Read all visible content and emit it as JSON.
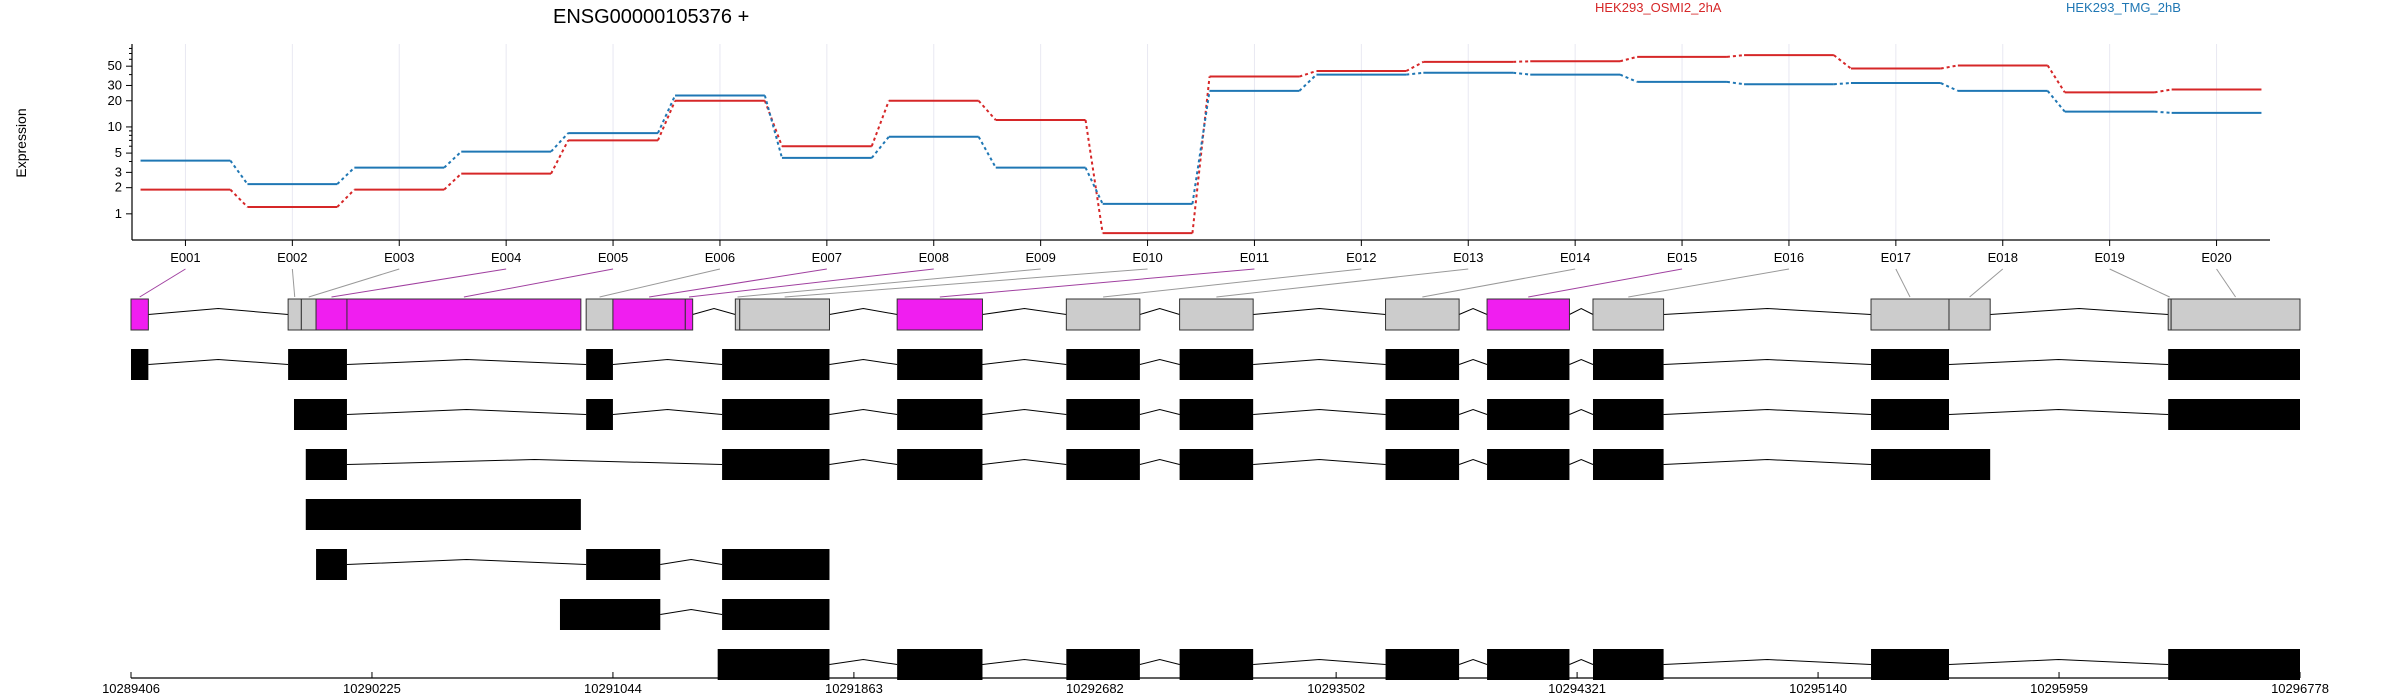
{
  "title": "ENSG00000105376 +",
  "legend": [
    {
      "name": "HEK293_OSMI2_2hA",
      "color": "#d62728"
    },
    {
      "name": "HEK293_TMG_2hB",
      "color": "#1f77b4"
    }
  ],
  "colors": {
    "highlight": "#f01ef0",
    "neutral": "#cccccc",
    "transcript": "#000000",
    "grid": "#e8e8f2"
  },
  "chart_data": {
    "type": "line",
    "ylabel": "Expression",
    "yscale": "log",
    "ylim": [
      0.5,
      90
    ],
    "yticks": [
      "1",
      "2",
      "3",
      "5",
      "10",
      "20",
      "30",
      "50"
    ],
    "categories": [
      "E001",
      "E002",
      "E003",
      "E004",
      "E005",
      "E006",
      "E007",
      "E008",
      "E009",
      "E010",
      "E011",
      "E012",
      "E013",
      "E014",
      "E015",
      "E016",
      "E017",
      "E018",
      "E019",
      "E020"
    ],
    "series": [
      {
        "name": "HEK293_OSMI2_2hA",
        "color": "#d62728",
        "values": [
          1.9,
          1.2,
          1.9,
          2.9,
          7.0,
          20,
          6.0,
          20,
          12,
          0.6,
          38,
          44,
          56,
          57,
          64,
          67,
          47,
          51,
          25,
          27
        ]
      },
      {
        "name": "HEK293_TMG_2hB",
        "color": "#1f77b4",
        "values": [
          4.1,
          2.2,
          3.4,
          5.2,
          8.5,
          23,
          4.4,
          7.7,
          3.4,
          1.3,
          26,
          40,
          42,
          40,
          33,
          31,
          32,
          26,
          15,
          14.5
        ]
      }
    ]
  },
  "exons": [
    {
      "id": "E001",
      "start": 10289406,
      "end": 10289465,
      "highlighted": true
    },
    {
      "id": "E002",
      "start": 10289940,
      "end": 10289985,
      "highlighted": false
    },
    {
      "id": "E003",
      "start": 10289985,
      "end": 10290035,
      "highlighted": false
    },
    {
      "id": "E004",
      "start": 10290035,
      "end": 10290140,
      "highlighted": true
    },
    {
      "id": "E005",
      "start": 10290140,
      "end": 10290935,
      "highlighted": true
    },
    {
      "id": "E006",
      "start": 10290953,
      "end": 10291044,
      "highlighted": false
    },
    {
      "id": "E007",
      "start": 10291044,
      "end": 10291290,
      "highlighted": true
    },
    {
      "id": "E008",
      "start": 10291290,
      "end": 10291315,
      "highlighted": true
    },
    {
      "id": "E009",
      "start": 10291460,
      "end": 10291475,
      "highlighted": false
    },
    {
      "id": "E010",
      "start": 10291475,
      "end": 10291780,
      "highlighted": false
    },
    {
      "id": "E011",
      "start": 10292010,
      "end": 10292300,
      "highlighted": true
    },
    {
      "id": "E012",
      "start": 10292585,
      "end": 10292835,
      "highlighted": false
    },
    {
      "id": "E013",
      "start": 10292970,
      "end": 10293220,
      "highlighted": false
    },
    {
      "id": "E014",
      "start": 10293670,
      "end": 10293920,
      "highlighted": false
    },
    {
      "id": "E015",
      "start": 10294015,
      "end": 10294295,
      "highlighted": true
    },
    {
      "id": "E016",
      "start": 10294375,
      "end": 10294615,
      "highlighted": false
    },
    {
      "id": "E017",
      "start": 10295320,
      "end": 10295585,
      "highlighted": false
    },
    {
      "id": "E018",
      "start": 10295585,
      "end": 10295725,
      "highlighted": false
    },
    {
      "id": "E019",
      "start": 10296330,
      "end": 10296340,
      "highlighted": false
    },
    {
      "id": "E020",
      "start": 10296340,
      "end": 10296778,
      "highlighted": false
    }
  ],
  "transcripts": [
    [
      [
        10289406,
        10289465
      ],
      [
        10289940,
        10290140
      ],
      [
        10290953,
        10291044
      ],
      [
        10291415,
        10291780
      ],
      [
        10292010,
        10292300
      ],
      [
        10292585,
        10292835
      ],
      [
        10292970,
        10293220
      ],
      [
        10293670,
        10293920
      ],
      [
        10294015,
        10294295
      ],
      [
        10294375,
        10294615
      ],
      [
        10295320,
        10295585
      ],
      [
        10296330,
        10296778
      ]
    ],
    [
      [
        10289960,
        10290140
      ],
      [
        10290953,
        10291044
      ],
      [
        10291415,
        10291780
      ],
      [
        10292010,
        10292300
      ],
      [
        10292585,
        10292835
      ],
      [
        10292970,
        10293220
      ],
      [
        10293670,
        10293920
      ],
      [
        10294015,
        10294295
      ],
      [
        10294375,
        10294615
      ],
      [
        10295320,
        10295585
      ],
      [
        10296330,
        10296778
      ]
    ],
    [
      [
        10290000,
        10290140
      ],
      [
        10291415,
        10291780
      ],
      [
        10292010,
        10292300
      ],
      [
        10292585,
        10292835
      ],
      [
        10292970,
        10293220
      ],
      [
        10293670,
        10293920
      ],
      [
        10294015,
        10294295
      ],
      [
        10294375,
        10294615
      ],
      [
        10295320,
        10295725
      ]
    ],
    [
      [
        10290000,
        10290935
      ]
    ],
    [
      [
        10290035,
        10290140
      ],
      [
        10290953,
        10291205
      ],
      [
        10291415,
        10291780
      ]
    ],
    [
      [
        10290864,
        10291205
      ],
      [
        10291415,
        10291780
      ]
    ],
    [
      [
        10291400,
        10291780
      ],
      [
        10292010,
        10292300
      ],
      [
        10292585,
        10292835
      ],
      [
        10292970,
        10293220
      ],
      [
        10293670,
        10293920
      ],
      [
        10294015,
        10294295
      ],
      [
        10294375,
        10294615
      ],
      [
        10295320,
        10295585
      ],
      [
        10296330,
        10296778
      ]
    ]
  ],
  "genomic_ticks": [
    "10289406",
    "10290225",
    "10291044",
    "10291863",
    "10292682",
    "10293502",
    "10294321",
    "10295140",
    "10295959",
    "10296778"
  ]
}
